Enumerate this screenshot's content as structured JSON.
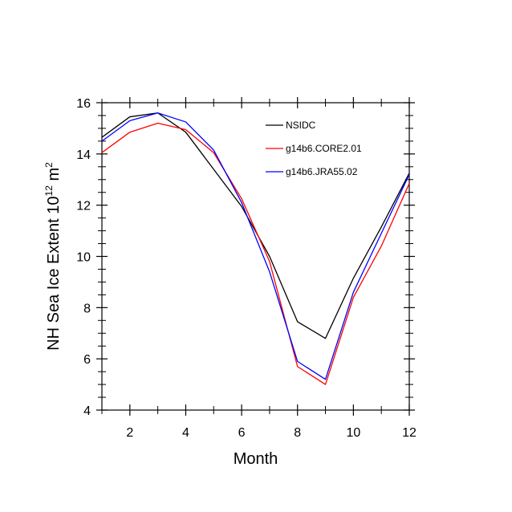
{
  "chart_data": {
    "type": "line",
    "xlabel": "Month",
    "ylabel": {
      "prefix": "NH Sea Ice Extent 10",
      "exp1": "12",
      "mid": " m",
      "exp2": "2"
    },
    "xlim": [
      1,
      12
    ],
    "ylim": [
      4,
      16
    ],
    "xticks": [
      2,
      4,
      6,
      8,
      10,
      12
    ],
    "yticks": [
      4,
      6,
      8,
      10,
      12,
      14,
      16
    ],
    "grid": false,
    "legend_position": "top-right",
    "x": [
      1,
      2,
      3,
      4,
      5,
      6,
      7,
      8,
      9,
      10,
      11,
      12
    ],
    "series": [
      {
        "name": "NSIDC",
        "color": "#000000",
        "values": [
          14.65,
          15.45,
          15.6,
          14.85,
          13.4,
          11.95,
          10.0,
          7.45,
          6.8,
          9.15,
          11.15,
          13.25
        ]
      },
      {
        "name": "g14b6.CORE2.01",
        "color": "#ff0000",
        "values": [
          14.05,
          14.85,
          15.2,
          14.95,
          14.05,
          12.25,
          9.8,
          5.7,
          5.0,
          8.4,
          10.4,
          12.85
        ]
      },
      {
        "name": "g14b6.JRA55.02",
        "color": "#0000ff",
        "values": [
          14.5,
          15.3,
          15.6,
          15.25,
          14.15,
          12.1,
          9.4,
          5.9,
          5.2,
          8.6,
          10.9,
          13.2
        ]
      }
    ]
  }
}
